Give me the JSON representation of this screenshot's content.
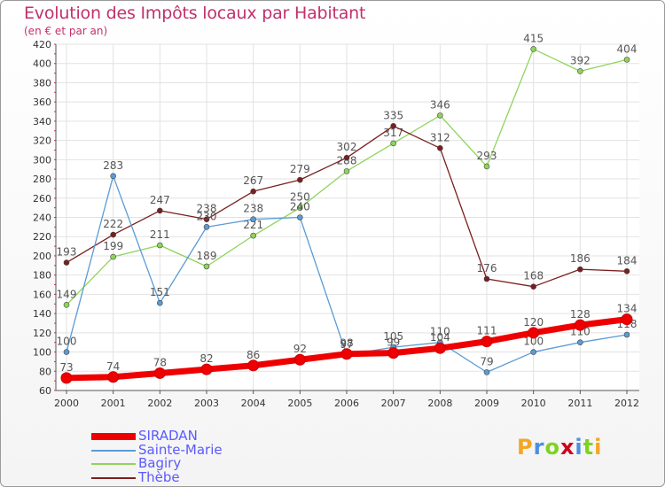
{
  "chart_data": {
    "type": "line",
    "title": "Evolution des Impôts locaux par Habitant",
    "subtitle": "(en € et par an)",
    "x": [
      2000,
      2001,
      2002,
      2003,
      2004,
      2005,
      2006,
      2007,
      2008,
      2009,
      2010,
      2011,
      2012
    ],
    "ylim": [
      60,
      420
    ],
    "yticks": [
      60,
      80,
      100,
      120,
      140,
      160,
      180,
      200,
      220,
      240,
      260,
      280,
      300,
      320,
      340,
      360,
      380,
      400,
      420
    ],
    "grid": true,
    "legend_position": "bottom-left",
    "series": [
      {
        "name": "SIRADAN",
        "color": "#ee0000",
        "values": [
          73,
          74,
          78,
          82,
          86,
          92,
          98,
          99,
          104,
          111,
          120,
          128,
          134
        ]
      },
      {
        "name": "Sainte-Marie",
        "color": "#5a9bd5",
        "values": [
          100,
          283,
          151,
          230,
          238,
          240,
          97,
          105,
          110,
          79,
          100,
          110,
          118
        ]
      },
      {
        "name": "Bagiry",
        "color": "#8fd45a",
        "values": [
          149,
          199,
          211,
          189,
          221,
          250,
          288,
          317,
          346,
          293,
          415,
          392,
          404
        ]
      },
      {
        "name": "Thèbe",
        "color": "#7a1f1f",
        "values": [
          193,
          222,
          247,
          238,
          267,
          279,
          302,
          335,
          312,
          176,
          168,
          186,
          184
        ]
      }
    ]
  },
  "logo": {
    "letters": [
      "P",
      "r",
      "o",
      "x",
      "i",
      "t",
      "i"
    ],
    "colors": [
      "#f5a623",
      "#4a90e2",
      "#7ed321",
      "#d0021b",
      "#4a90e2",
      "#7ed321",
      "#f5a623"
    ]
  }
}
